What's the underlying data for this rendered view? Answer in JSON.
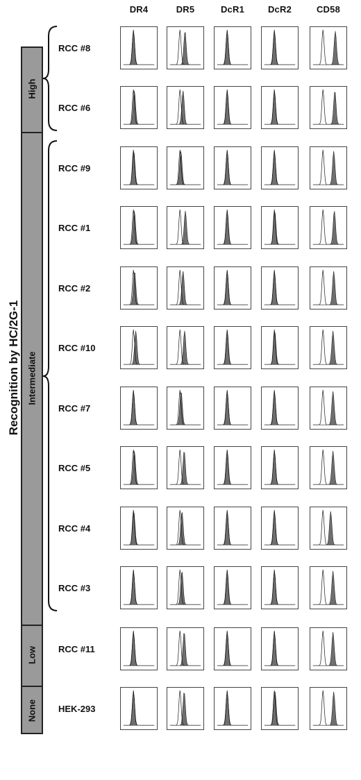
{
  "figure": {
    "side_title": "Recognition by HC/2G-1",
    "columns": [
      "DR4",
      "DR5",
      "DcR1",
      "DcR2",
      "CD58"
    ],
    "rows": [
      "RCC #8",
      "RCC #6",
      "RCC #9",
      "RCC #1",
      "RCC #2",
      "RCC #10",
      "RCC #7",
      "RCC #5",
      "RCC #4",
      "RCC #3",
      "RCC #11",
      "HEK-293"
    ],
    "categories": [
      {
        "label": "High",
        "rows": [
          "RCC #8",
          "RCC #6"
        ]
      },
      {
        "label": "Intermediate",
        "rows": [
          "RCC #9",
          "RCC #1",
          "RCC #2",
          "RCC #10",
          "RCC #7",
          "RCC #5",
          "RCC #4",
          "RCC #3"
        ]
      },
      {
        "label": "Low",
        "rows": [
          "RCC #11"
        ]
      },
      {
        "label": "None",
        "rows": [
          "HEK-293"
        ]
      }
    ]
  },
  "chart_data": {
    "type": "histogram-grid",
    "note_units": "peak position on log fluorescence axis 10^0–10^4 (shaded = stained, outline = control)",
    "x_range": [
      1,
      10000
    ],
    "control_peak": 20,
    "shifts": [
      [
        1.0,
        4.5,
        1.0,
        1.0,
        40
      ],
      [
        1.3,
        2.5,
        1.0,
        1.0,
        35
      ],
      [
        1.1,
        1.3,
        1.0,
        1.0,
        25
      ],
      [
        1.3,
        5.0,
        1.0,
        1.1,
        30
      ],
      [
        1.4,
        2.5,
        1.0,
        1.0,
        25
      ],
      [
        2.0,
        4.0,
        1.0,
        1.1,
        20
      ],
      [
        1.0,
        1.4,
        1.0,
        1.0,
        20
      ],
      [
        1.3,
        3.5,
        1.0,
        1.0,
        20
      ],
      [
        1.1,
        1.8,
        1.0,
        1.0,
        10
      ],
      [
        1.0,
        1.8,
        1.0,
        1.0,
        20
      ],
      [
        1.0,
        3.5,
        1.0,
        1.0,
        20
      ],
      [
        1.0,
        3.5,
        1.0,
        1.2,
        25
      ]
    ]
  }
}
